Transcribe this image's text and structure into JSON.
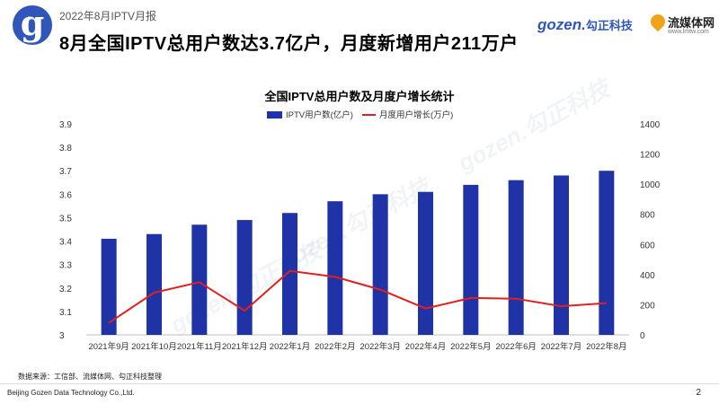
{
  "header": {
    "report_label": "2022年8月IPTV月报",
    "title": "8月全国IPTV总用户数达3.7亿户，月度新增用户211万户",
    "logo_letter": "g",
    "brand_gozen": "gozen.",
    "brand_gozen_cn": "勾正科技",
    "brand_lmtw_name": "流媒体网",
    "brand_lmtw_url": "www.lmtw.com"
  },
  "watermarks": [
    "gozen.勾正科技",
    "gozen.勾正科技",
    "gozen.勾正科技"
  ],
  "chart_data": {
    "type": "bar",
    "title": "全国IPTV总用户数及月度户增长统计",
    "categories": [
      "2021年9月",
      "2021年10月",
      "2021年11月",
      "2021年12月",
      "2022年1月",
      "2022年2月",
      "2022年3月",
      "2022年4月",
      "2022年5月",
      "2022年6月",
      "2022年7月",
      "2022年8月"
    ],
    "series": [
      {
        "name": "IPTV用户数(亿户)",
        "type": "bar",
        "axis": "left",
        "color": "#1f33a6",
        "values": [
          3.41,
          3.43,
          3.47,
          3.49,
          3.52,
          3.57,
          3.6,
          3.61,
          3.64,
          3.66,
          3.68,
          3.7
        ]
      },
      {
        "name": "月度用户增长(万户)",
        "type": "line",
        "axis": "right",
        "color": "#e21f1f",
        "values": [
          80,
          280,
          350,
          160,
          425,
          385,
          300,
          175,
          245,
          240,
          190,
          211
        ]
      }
    ],
    "y_left": {
      "min": 3.0,
      "max": 3.9,
      "step": 0.1,
      "ticks": [
        "3",
        "3.1",
        "3.2",
        "3.3",
        "3.4",
        "3.5",
        "3.6",
        "3.7",
        "3.8",
        "3.9"
      ]
    },
    "y_right": {
      "min": 0,
      "max": 1400,
      "step": 200,
      "ticks": [
        "0",
        "200",
        "400",
        "600",
        "800",
        "1000",
        "1200",
        "1400"
      ]
    },
    "legend_position": "top",
    "grid": false
  },
  "footer": {
    "source": "数据来源：工信部、流媒体网、勾正科技整理",
    "company": "Beijing Gozen Data Technology Co.,Ltd.",
    "page_number": "2"
  }
}
